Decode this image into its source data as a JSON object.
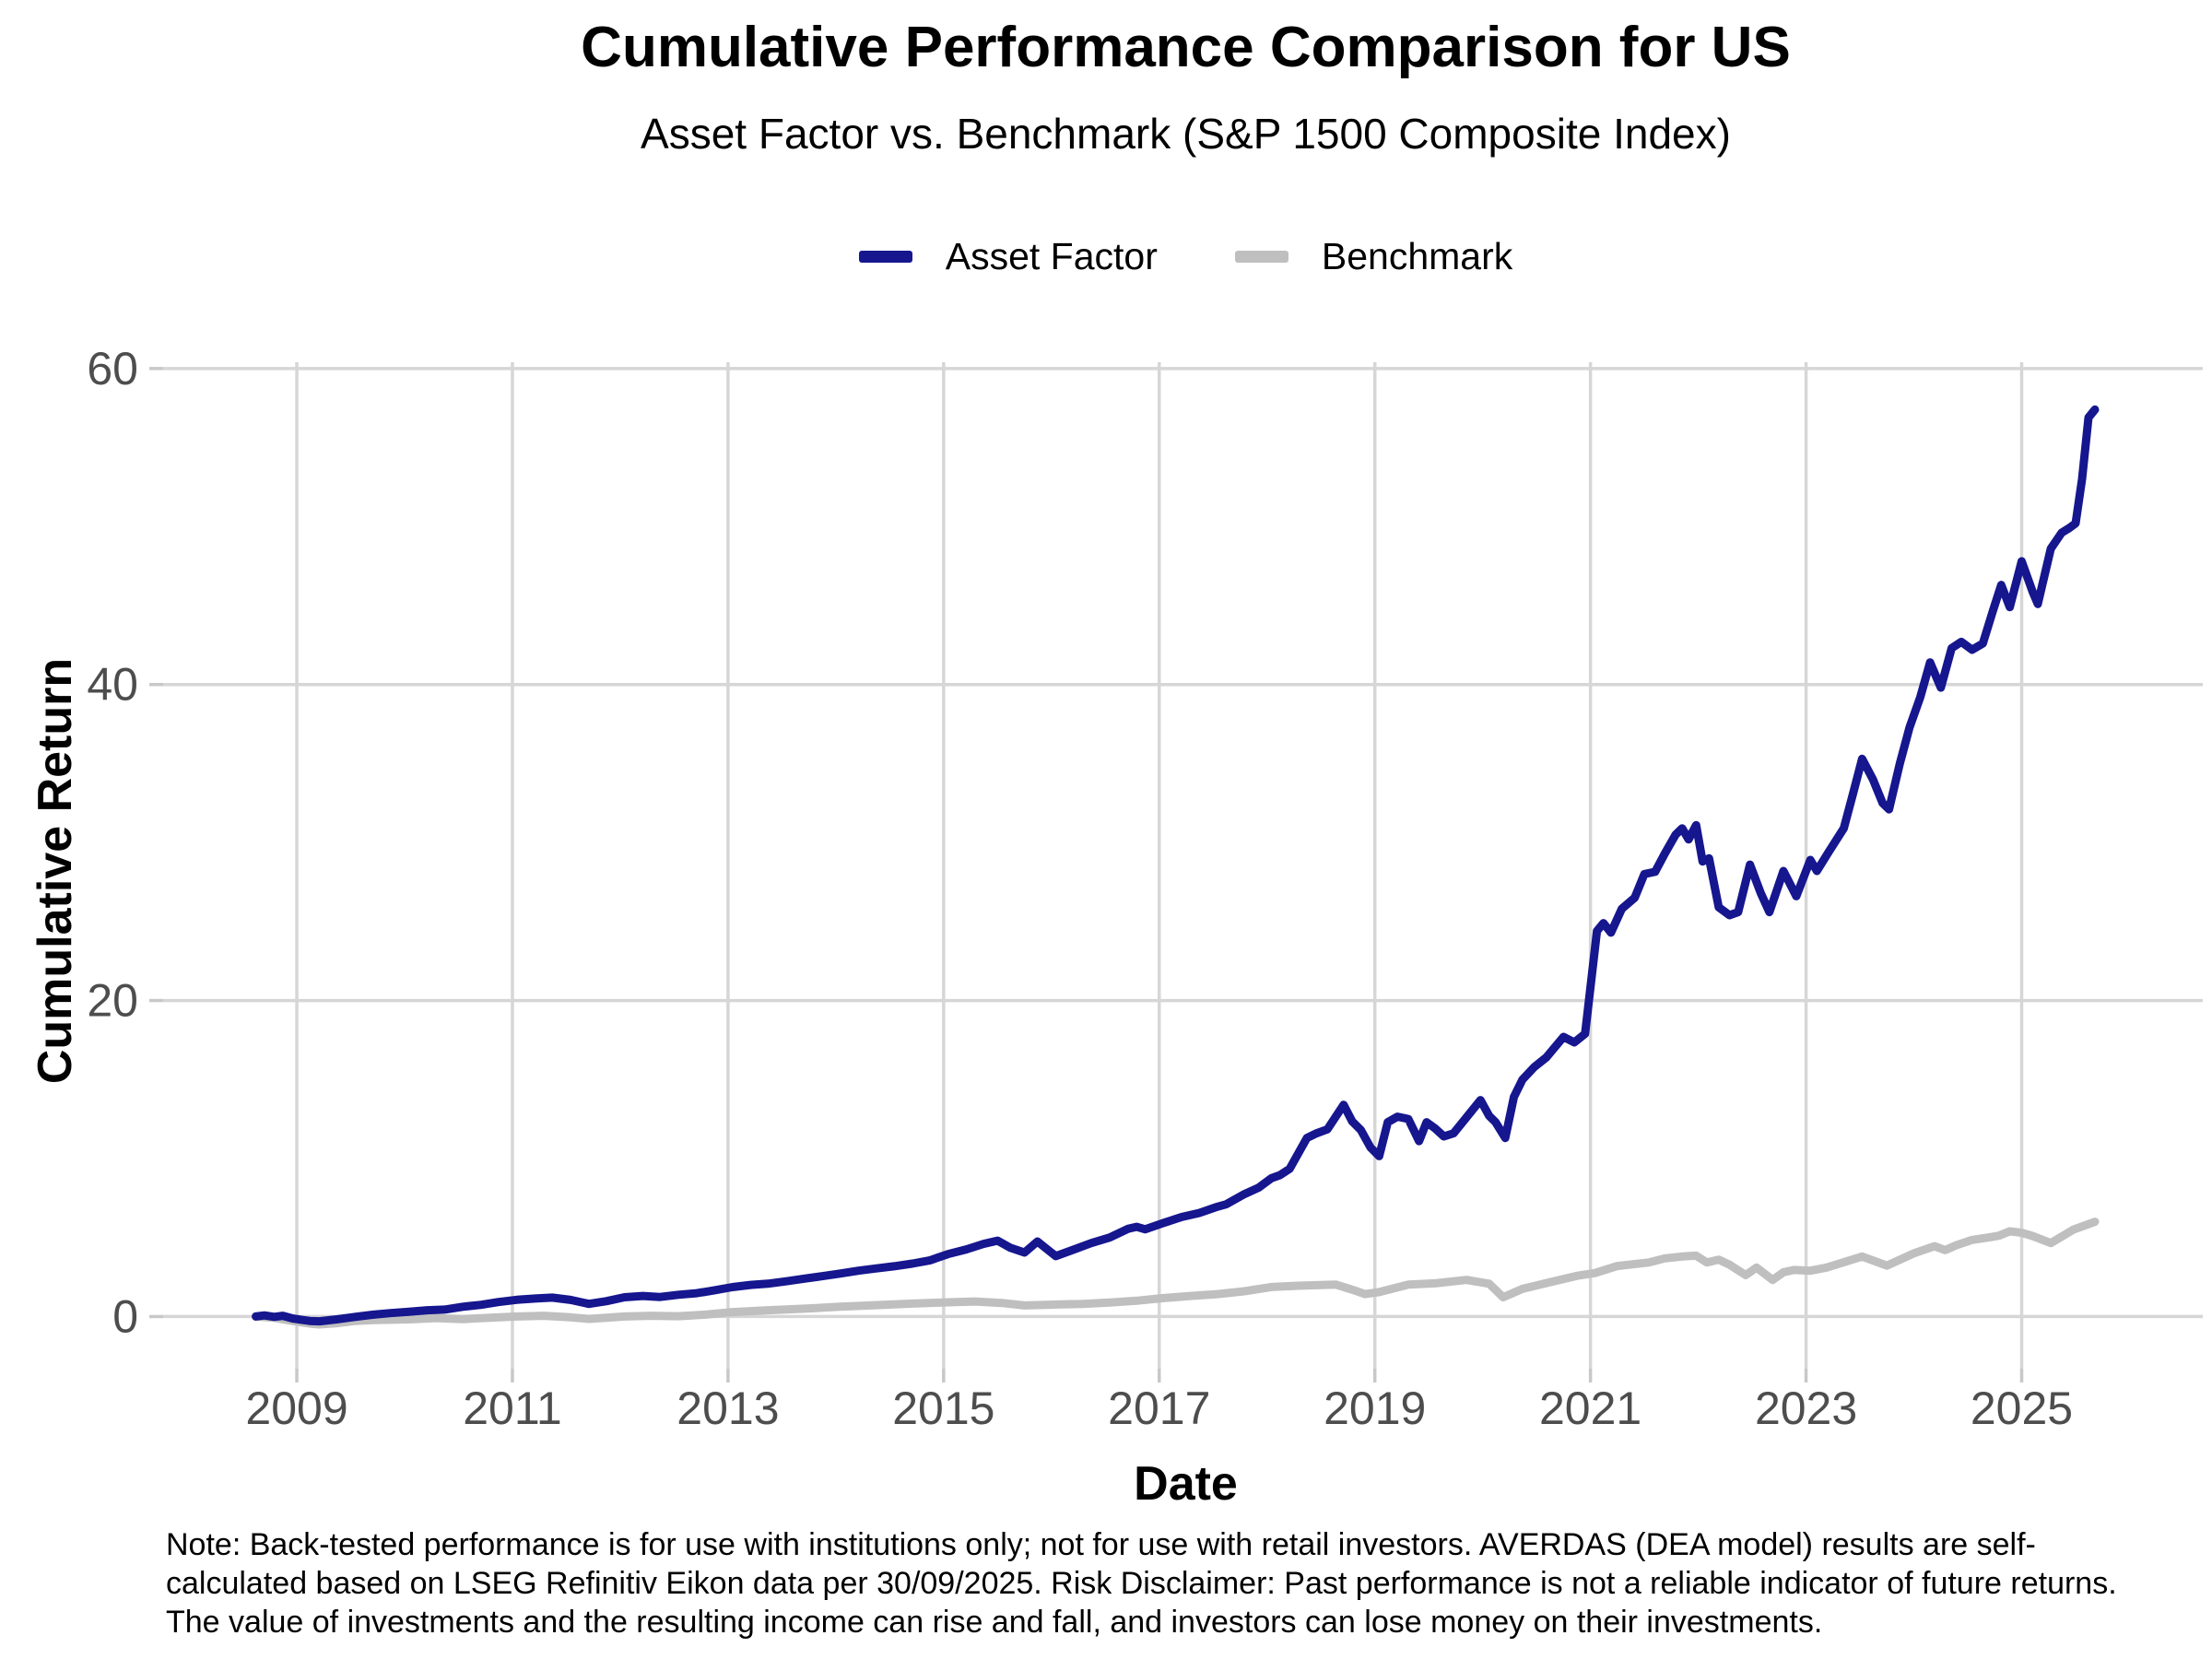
{
  "header": {
    "title": "Cumulative Performance Comparison for US",
    "subtitle": "Asset Factor vs. Benchmark (S&P 1500 Composite Index)"
  },
  "legend": {
    "items": [
      {
        "label": "Asset Factor",
        "color": "#16168F"
      },
      {
        "label": "Benchmark",
        "color": "#BFBFBF"
      }
    ]
  },
  "axes": {
    "y_title": "Cumulative Return",
    "x_title": "Date"
  },
  "note": "Note: Back-tested performance is for use with institutions only; not for use with retail investors. AVERDAS (DEA model) results are self-calculated based on LSEG Refinitiv Eikon data per 30/09/2025. Risk Disclaimer: Past performance is not a reliable indicator of future returns. The value of investments and the resulting income can rise and fall, and investors can lose money on their investments.",
  "colors": {
    "asset_factor": "#16168F",
    "benchmark": "#BFBFBF",
    "gridline": "#D6D6D6",
    "tick_mark": "#C8C8C8",
    "tick_label": "#4D4D4D",
    "background": "#FFFFFF"
  },
  "chart_data": {
    "type": "line",
    "title": "Cumulative Performance Comparison for US",
    "subtitle": "Asset Factor vs. Benchmark (S&P 1500 Composite Index)",
    "xlabel": "Date",
    "ylabel": "Cumulative Return",
    "x_ticks": [
      2009,
      2011,
      2013,
      2015,
      2017,
      2019,
      2021,
      2023,
      2025
    ],
    "y_ticks": [
      0,
      20,
      40,
      60
    ],
    "xlim": [
      2007.76,
      2026.68
    ],
    "ylim": [
      -3.3,
      60.4
    ],
    "grid": true,
    "legend_position": "top",
    "series": [
      {
        "name": "Asset Factor",
        "color": "#16168F",
        "points": [
          [
            2008.62,
            0.0
          ],
          [
            2008.7,
            0.07
          ],
          [
            2008.79,
            -0.02
          ],
          [
            2008.87,
            0.05
          ],
          [
            2008.96,
            -0.12
          ],
          [
            2009.04,
            -0.2
          ],
          [
            2009.12,
            -0.28
          ],
          [
            2009.21,
            -0.3
          ],
          [
            2009.37,
            -0.18
          ],
          [
            2009.54,
            -0.02
          ],
          [
            2009.71,
            0.12
          ],
          [
            2009.87,
            0.22
          ],
          [
            2010.04,
            0.3
          ],
          [
            2010.21,
            0.4
          ],
          [
            2010.37,
            0.44
          ],
          [
            2010.54,
            0.62
          ],
          [
            2010.71,
            0.74
          ],
          [
            2010.87,
            0.92
          ],
          [
            2011.04,
            1.06
          ],
          [
            2011.21,
            1.14
          ],
          [
            2011.37,
            1.2
          ],
          [
            2011.54,
            1.05
          ],
          [
            2011.71,
            0.8
          ],
          [
            2011.87,
            0.97
          ],
          [
            2012.04,
            1.22
          ],
          [
            2012.21,
            1.3
          ],
          [
            2012.37,
            1.24
          ],
          [
            2012.54,
            1.38
          ],
          [
            2012.71,
            1.48
          ],
          [
            2012.87,
            1.65
          ],
          [
            2013.04,
            1.86
          ],
          [
            2013.21,
            2.0
          ],
          [
            2013.37,
            2.08
          ],
          [
            2013.54,
            2.23
          ],
          [
            2013.71,
            2.4
          ],
          [
            2013.87,
            2.55
          ],
          [
            2014.04,
            2.72
          ],
          [
            2014.21,
            2.9
          ],
          [
            2014.37,
            3.04
          ],
          [
            2014.54,
            3.18
          ],
          [
            2014.71,
            3.35
          ],
          [
            2014.87,
            3.55
          ],
          [
            2015.04,
            3.95
          ],
          [
            2015.21,
            4.25
          ],
          [
            2015.37,
            4.6
          ],
          [
            2015.5,
            4.8
          ],
          [
            2015.62,
            4.35
          ],
          [
            2015.75,
            4.05
          ],
          [
            2015.87,
            4.75
          ],
          [
            2016.04,
            3.82
          ],
          [
            2016.21,
            4.25
          ],
          [
            2016.37,
            4.65
          ],
          [
            2016.54,
            5.0
          ],
          [
            2016.71,
            5.55
          ],
          [
            2016.79,
            5.68
          ],
          [
            2016.87,
            5.52
          ],
          [
            2017.04,
            5.92
          ],
          [
            2017.21,
            6.3
          ],
          [
            2017.37,
            6.55
          ],
          [
            2017.54,
            6.95
          ],
          [
            2017.62,
            7.1
          ],
          [
            2017.79,
            7.75
          ],
          [
            2017.92,
            8.15
          ],
          [
            2018.04,
            8.75
          ],
          [
            2018.12,
            8.95
          ],
          [
            2018.21,
            9.35
          ],
          [
            2018.37,
            11.3
          ],
          [
            2018.46,
            11.6
          ],
          [
            2018.56,
            11.85
          ],
          [
            2018.71,
            13.4
          ],
          [
            2018.79,
            12.35
          ],
          [
            2018.87,
            11.8
          ],
          [
            2018.96,
            10.7
          ],
          [
            2019.04,
            10.15
          ],
          [
            2019.12,
            12.3
          ],
          [
            2019.21,
            12.65
          ],
          [
            2019.31,
            12.5
          ],
          [
            2019.41,
            11.1
          ],
          [
            2019.48,
            12.3
          ],
          [
            2019.56,
            11.9
          ],
          [
            2019.64,
            11.4
          ],
          [
            2019.73,
            11.6
          ],
          [
            2019.85,
            12.6
          ],
          [
            2019.98,
            13.7
          ],
          [
            2020.06,
            12.7
          ],
          [
            2020.12,
            12.3
          ],
          [
            2020.21,
            11.3
          ],
          [
            2020.29,
            13.9
          ],
          [
            2020.37,
            15.0
          ],
          [
            2020.48,
            15.8
          ],
          [
            2020.59,
            16.4
          ],
          [
            2020.75,
            17.7
          ],
          [
            2020.85,
            17.35
          ],
          [
            2020.95,
            17.9
          ],
          [
            2021.06,
            24.4
          ],
          [
            2021.12,
            24.9
          ],
          [
            2021.19,
            24.3
          ],
          [
            2021.29,
            25.8
          ],
          [
            2021.41,
            26.5
          ],
          [
            2021.5,
            28.0
          ],
          [
            2021.6,
            28.15
          ],
          [
            2021.69,
            29.3
          ],
          [
            2021.79,
            30.5
          ],
          [
            2021.85,
            30.9
          ],
          [
            2021.91,
            30.2
          ],
          [
            2021.98,
            31.1
          ],
          [
            2022.04,
            28.8
          ],
          [
            2022.1,
            29.0
          ],
          [
            2022.19,
            25.9
          ],
          [
            2022.29,
            25.4
          ],
          [
            2022.37,
            25.6
          ],
          [
            2022.48,
            28.6
          ],
          [
            2022.58,
            26.8
          ],
          [
            2022.66,
            25.6
          ],
          [
            2022.79,
            28.2
          ],
          [
            2022.91,
            26.6
          ],
          [
            2023.04,
            28.9
          ],
          [
            2023.1,
            28.2
          ],
          [
            2023.21,
            29.4
          ],
          [
            2023.35,
            30.9
          ],
          [
            2023.44,
            33.2
          ],
          [
            2023.52,
            35.3
          ],
          [
            2023.62,
            34.0
          ],
          [
            2023.71,
            32.5
          ],
          [
            2023.77,
            32.1
          ],
          [
            2023.87,
            35.0
          ],
          [
            2023.96,
            37.3
          ],
          [
            2024.06,
            39.2
          ],
          [
            2024.15,
            41.4
          ],
          [
            2024.25,
            39.8
          ],
          [
            2024.35,
            42.3
          ],
          [
            2024.44,
            42.7
          ],
          [
            2024.54,
            42.2
          ],
          [
            2024.64,
            42.6
          ],
          [
            2024.73,
            44.6
          ],
          [
            2024.81,
            46.3
          ],
          [
            2024.89,
            44.9
          ],
          [
            2025.0,
            47.8
          ],
          [
            2025.1,
            45.9
          ],
          [
            2025.15,
            45.1
          ],
          [
            2025.27,
            48.6
          ],
          [
            2025.37,
            49.6
          ],
          [
            2025.44,
            49.9
          ],
          [
            2025.5,
            50.2
          ],
          [
            2025.56,
            53.0
          ],
          [
            2025.62,
            56.9
          ],
          [
            2025.68,
            57.4
          ]
        ]
      },
      {
        "name": "Benchmark",
        "color": "#BFBFBF",
        "points": [
          [
            2008.62,
            0.0
          ],
          [
            2008.79,
            -0.08
          ],
          [
            2008.96,
            -0.28
          ],
          [
            2009.12,
            -0.45
          ],
          [
            2009.21,
            -0.5
          ],
          [
            2009.37,
            -0.42
          ],
          [
            2009.54,
            -0.28
          ],
          [
            2009.71,
            -0.22
          ],
          [
            2009.87,
            -0.2
          ],
          [
            2010.04,
            -0.18
          ],
          [
            2010.29,
            -0.1
          ],
          [
            2010.54,
            -0.16
          ],
          [
            2010.79,
            -0.08
          ],
          [
            2011.04,
            0.0
          ],
          [
            2011.29,
            0.05
          ],
          [
            2011.54,
            -0.05
          ],
          [
            2011.71,
            -0.15
          ],
          [
            2011.87,
            -0.08
          ],
          [
            2012.04,
            0.0
          ],
          [
            2012.29,
            0.05
          ],
          [
            2012.54,
            0.02
          ],
          [
            2012.79,
            0.12
          ],
          [
            2013.04,
            0.28
          ],
          [
            2013.37,
            0.4
          ],
          [
            2013.71,
            0.5
          ],
          [
            2014.04,
            0.62
          ],
          [
            2014.37,
            0.72
          ],
          [
            2014.71,
            0.82
          ],
          [
            2015.04,
            0.9
          ],
          [
            2015.29,
            0.95
          ],
          [
            2015.54,
            0.86
          ],
          [
            2015.75,
            0.7
          ],
          [
            2016.04,
            0.76
          ],
          [
            2016.29,
            0.8
          ],
          [
            2016.54,
            0.88
          ],
          [
            2016.79,
            1.0
          ],
          [
            2017.04,
            1.17
          ],
          [
            2017.29,
            1.3
          ],
          [
            2017.54,
            1.42
          ],
          [
            2017.79,
            1.6
          ],
          [
            2018.04,
            1.87
          ],
          [
            2018.29,
            1.95
          ],
          [
            2018.64,
            2.02
          ],
          [
            2018.79,
            1.7
          ],
          [
            2018.91,
            1.42
          ],
          [
            2019.04,
            1.55
          ],
          [
            2019.31,
            2.02
          ],
          [
            2019.56,
            2.1
          ],
          [
            2019.85,
            2.32
          ],
          [
            2020.06,
            2.08
          ],
          [
            2020.19,
            1.22
          ],
          [
            2020.37,
            1.75
          ],
          [
            2020.64,
            2.2
          ],
          [
            2020.89,
            2.6
          ],
          [
            2021.04,
            2.75
          ],
          [
            2021.25,
            3.2
          ],
          [
            2021.54,
            3.42
          ],
          [
            2021.69,
            3.68
          ],
          [
            2021.85,
            3.8
          ],
          [
            2021.98,
            3.85
          ],
          [
            2022.08,
            3.42
          ],
          [
            2022.19,
            3.6
          ],
          [
            2022.29,
            3.28
          ],
          [
            2022.44,
            2.62
          ],
          [
            2022.54,
            3.1
          ],
          [
            2022.69,
            2.32
          ],
          [
            2022.79,
            2.8
          ],
          [
            2022.89,
            2.95
          ],
          [
            2023.04,
            2.9
          ],
          [
            2023.19,
            3.1
          ],
          [
            2023.52,
            3.8
          ],
          [
            2023.75,
            3.22
          ],
          [
            2024.0,
            4.0
          ],
          [
            2024.19,
            4.45
          ],
          [
            2024.29,
            4.2
          ],
          [
            2024.39,
            4.5
          ],
          [
            2024.54,
            4.85
          ],
          [
            2024.69,
            5.0
          ],
          [
            2024.79,
            5.12
          ],
          [
            2024.89,
            5.4
          ],
          [
            2025.0,
            5.3
          ],
          [
            2025.1,
            5.1
          ],
          [
            2025.27,
            4.65
          ],
          [
            2025.48,
            5.5
          ],
          [
            2025.6,
            5.8
          ],
          [
            2025.68,
            6.0
          ]
        ]
      }
    ]
  }
}
